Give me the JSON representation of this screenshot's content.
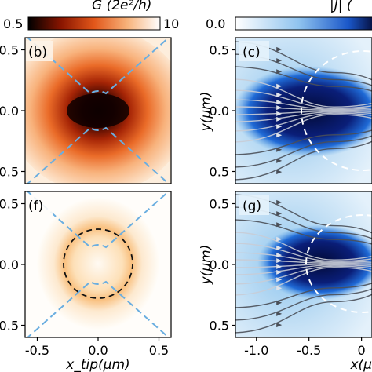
{
  "chart_data": [
    {
      "panel": "(b)",
      "type": "heatmap",
      "colorbar": {
        "label": "G (2e²/h)",
        "min": "0.5",
        "max": "10",
        "colormap": "white-to-black via orange/red"
      },
      "xlim": [
        -0.6,
        0.6
      ],
      "ylim": [
        -0.6,
        0.6
      ],
      "yticks": [
        "0.5",
        "0.0",
        "0.5"
      ],
      "overlay": "dashed light-blue constriction gate outline",
      "colors": {
        "gate": "#6aaee0"
      }
    },
    {
      "panel": "(c)",
      "type": "heatmap",
      "colorbar": {
        "label": "|J| (",
        "min": "0.0",
        "colormap": "white-to-dark-blue"
      },
      "xlim": [
        -1.2,
        0.1
      ],
      "ylim": [
        -0.6,
        0.6
      ],
      "yticks": [
        "0.5",
        "0.0",
        "0.5"
      ],
      "ylabel": "y(µm)",
      "overlay": "current streamlines and dashed white circle"
    },
    {
      "panel": "(f)",
      "type": "heatmap",
      "xlim": [
        -0.6,
        0.6
      ],
      "ylim": [
        -0.6,
        0.6
      ],
      "xticks": [
        "-0.5",
        "0.0",
        "0.5"
      ],
      "yticks": [
        "0.5",
        "0.0",
        "0.5"
      ],
      "xlabel": "x_tip(µm)",
      "overlay": "dashed black circle radius 0.3 µm and dashed light-blue gate outline"
    },
    {
      "panel": "(g)",
      "type": "heatmap",
      "xlim": [
        -1.2,
        0.1
      ],
      "ylim": [
        -0.6,
        0.6
      ],
      "xticks": [
        "-1.0",
        "-0.5",
        "0"
      ],
      "yticks": [
        "0.5",
        "0.0",
        "0.5"
      ],
      "ylabel": "y(µm)",
      "xlabel": "x(µ",
      "overlay": "current streamlines and dashed white circle"
    }
  ],
  "colors": {
    "blue_dark": "#020a3c",
    "blue_mid": "#1e6fd6",
    "blue_light": "#c9e2f6",
    "stream_gray": "#4a4f58"
  }
}
